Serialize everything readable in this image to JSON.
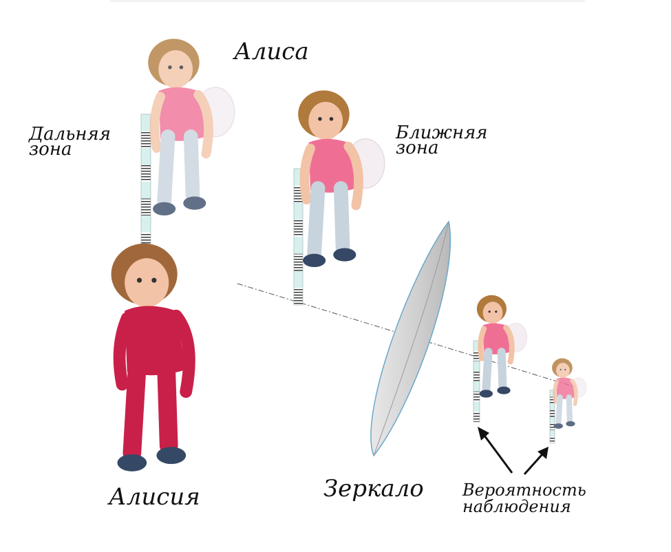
{
  "labels": {
    "alisa": "Алиса",
    "alisia": "Алисия",
    "mirror": "Зеркало",
    "far_zone": [
      "Дальняя",
      "зона"
    ],
    "near_zone": [
      "Ближняя",
      "зона"
    ],
    "probability": [
      "Вероятность",
      "наблюдения"
    ]
  },
  "colors": {
    "bar_cyan": "#d7f0ee",
    "bar_dark": "#4a4a4a",
    "mirror_fill": "#d4d4d4",
    "mirror_edge": "#6aa8c8",
    "shirt_pink": "#ef6f94",
    "outfit_red": "#c92049",
    "jeans": "#c7d3dd",
    "hair": "#b07a3c",
    "skin": "#f2c3a6"
  },
  "icons": [
    "child-figure",
    "measuring-bar",
    "arrow",
    "mirror-lens"
  ]
}
